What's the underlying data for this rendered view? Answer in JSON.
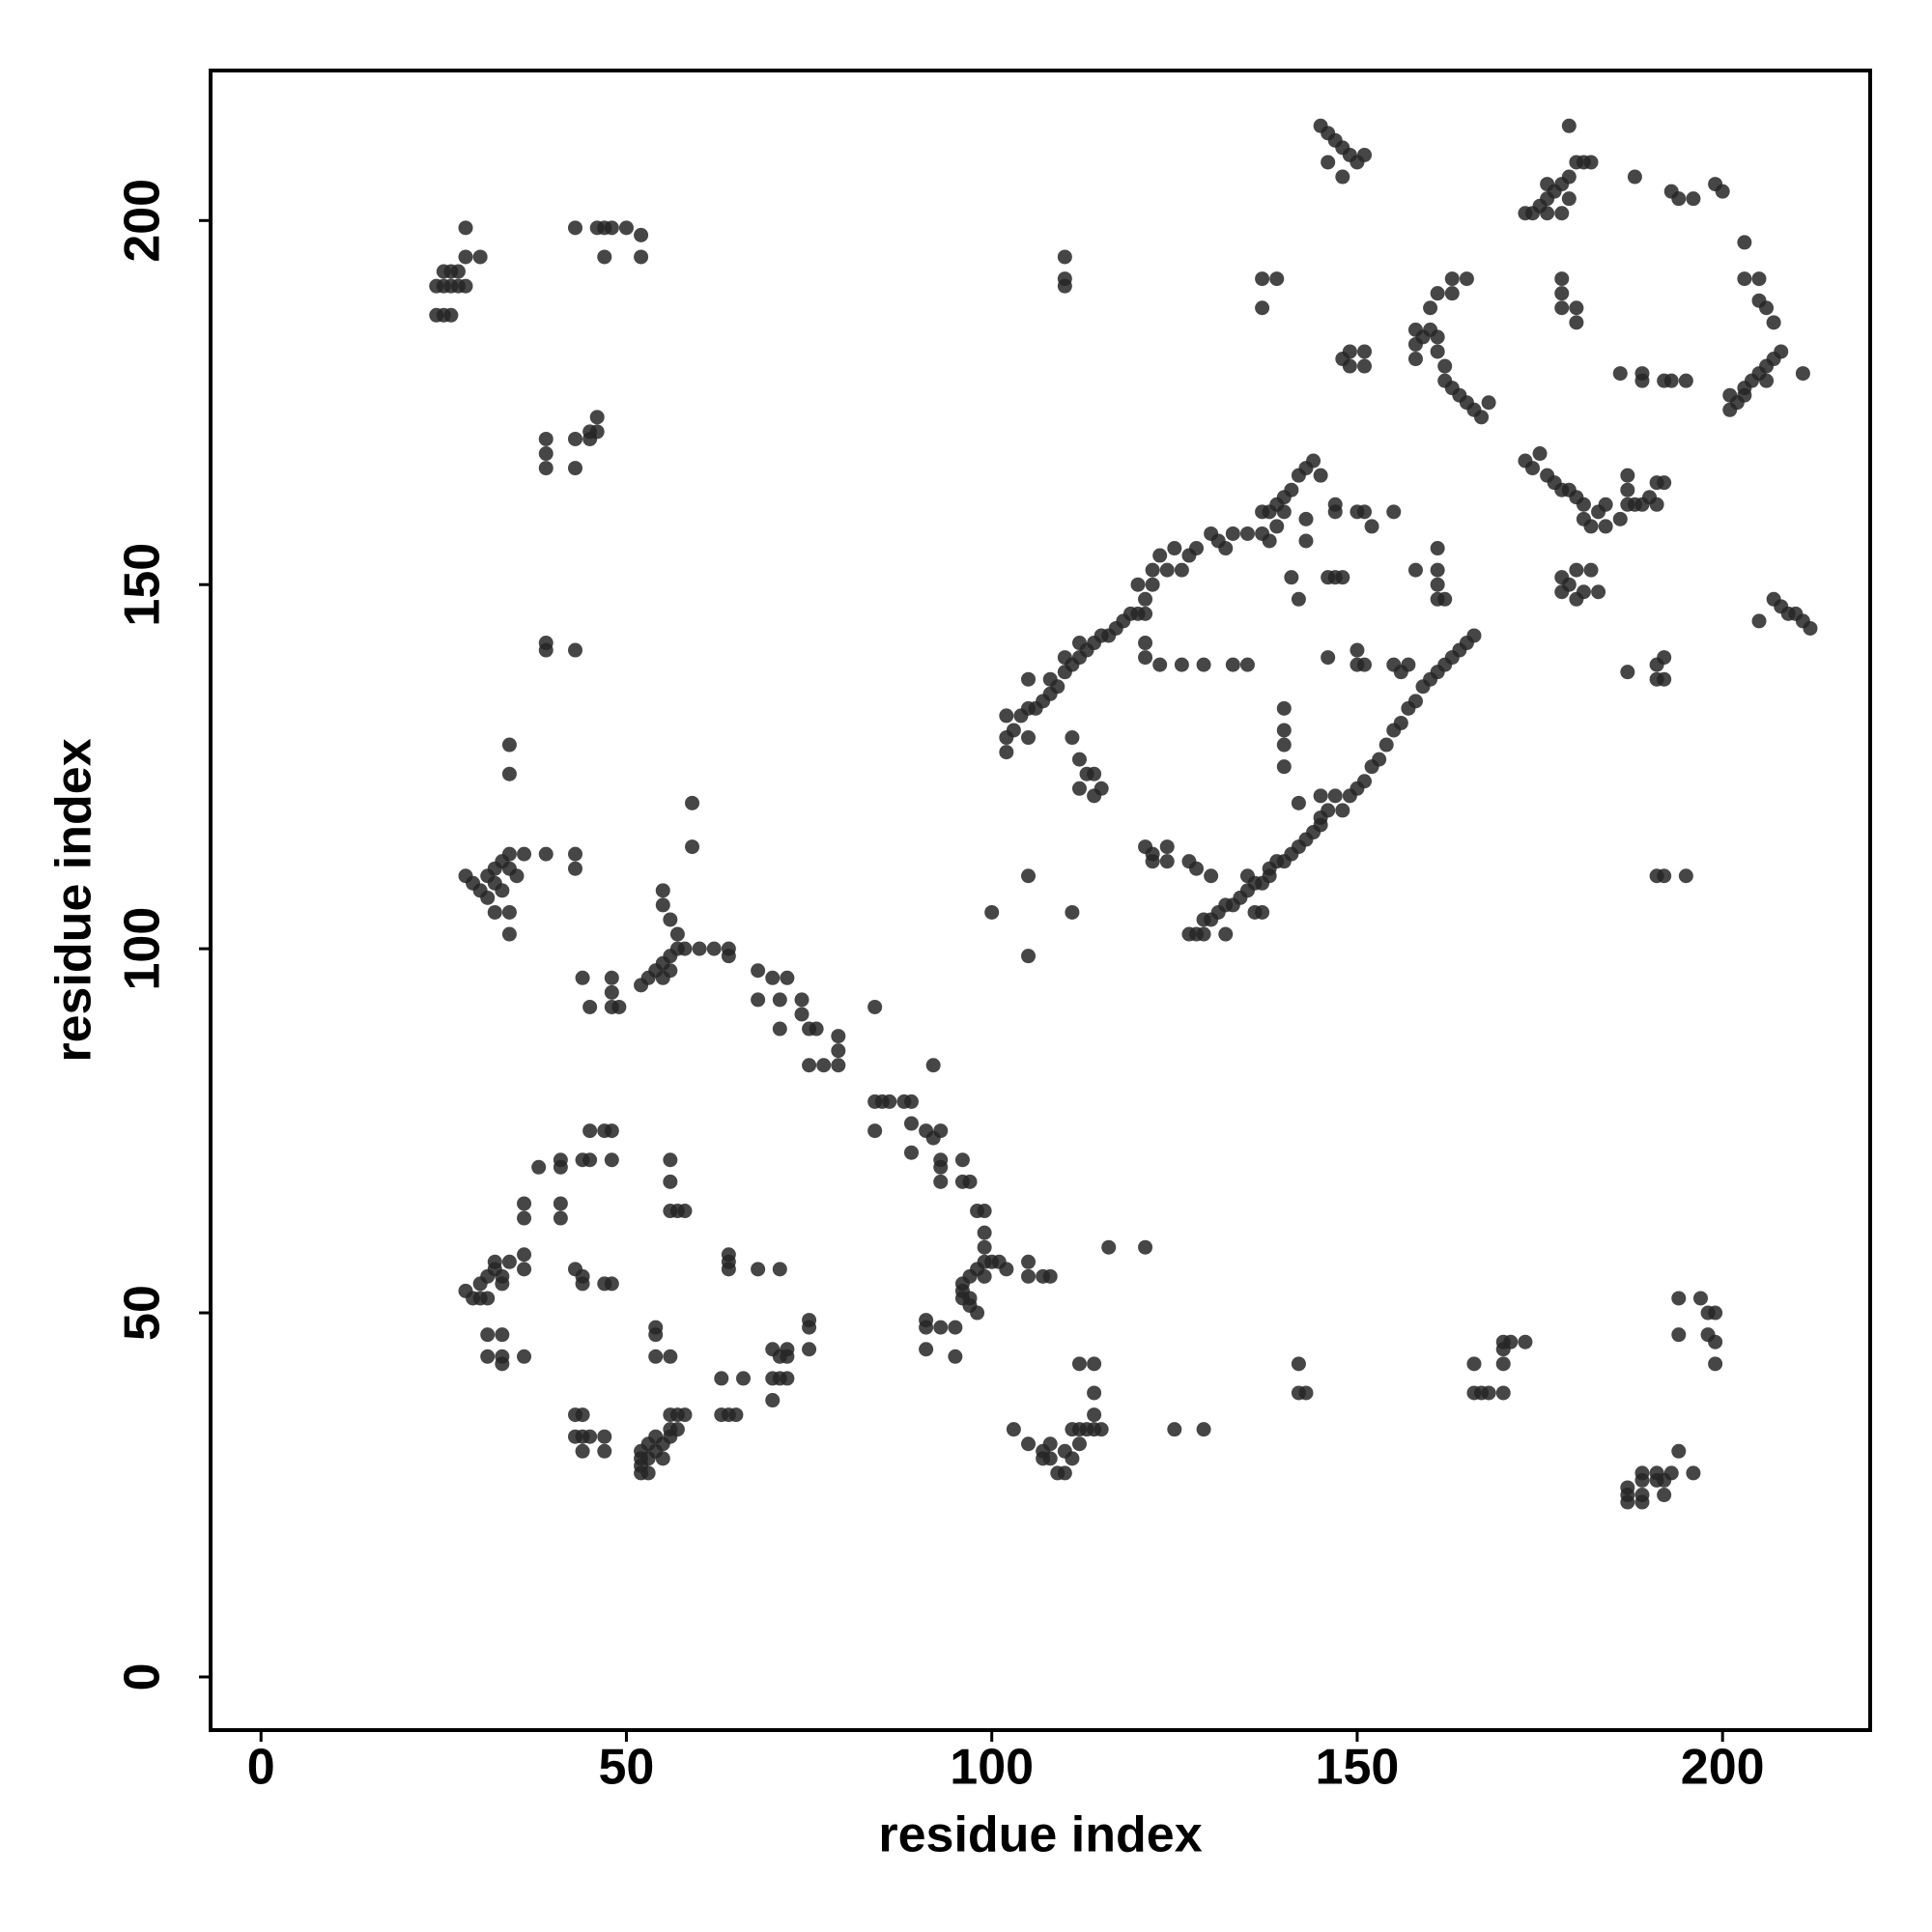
{
  "chart_data": {
    "type": "scatter",
    "xlabel": "residue index",
    "ylabel": "residue index",
    "color": "#262626",
    "xlim": [
      -6.9,
      220.2
    ],
    "ylim": [
      -7.3,
      220.6
    ],
    "xticks": [
      0,
      50,
      100,
      150,
      200
    ],
    "yticks": [
      0,
      50,
      100,
      150,
      200
    ],
    "x": [
      24,
      25,
      26,
      24,
      25,
      26,
      27,
      28,
      25,
      26,
      27,
      28,
      28,
      30,
      43,
      46,
      47,
      48,
      50,
      52,
      47,
      52,
      39,
      39,
      39,
      43,
      45,
      46,
      46,
      45,
      43,
      39,
      39,
      43,
      34,
      34,
      28,
      29,
      30,
      31,
      31,
      32,
      32,
      33,
      32,
      33,
      34,
      34,
      35,
      34,
      34,
      36,
      39,
      43,
      43,
      59,
      59,
      44,
      45,
      48,
      48,
      48,
      49,
      52,
      53,
      54,
      55,
      55,
      56,
      56,
      57,
      57,
      55,
      55,
      56,
      58,
      60,
      62,
      64,
      64,
      68,
      68,
      70,
      71,
      71,
      72,
      74,
      74,
      75,
      75,
      76,
      77,
      79,
      79,
      79,
      84,
      84,
      84,
      85,
      86,
      88,
      89,
      89,
      89,
      91,
      92,
      93,
      93,
      93,
      93,
      96,
      96,
      97,
      98,
      99,
      99,
      99,
      99,
      100,
      101,
      102,
      98,
      99,
      97,
      96,
      96,
      96,
      97,
      97,
      98,
      92,
      28,
      29,
      30,
      31,
      30,
      31,
      32,
      33,
      32,
      33,
      34,
      36,
      36,
      36,
      36,
      38,
      41,
      41,
      41,
      41,
      44,
      45,
      45,
      47,
      48,
      48,
      31,
      31,
      33,
      33,
      33,
      36,
      43,
      44,
      44,
      47,
      48,
      43,
      44,
      43,
      44,
      45,
      44,
      47,
      47,
      52,
      52,
      52,
      52,
      53,
      53,
      53,
      54,
      54,
      55,
      55,
      56,
      56,
      57,
      58,
      56,
      57,
      54,
      54,
      54,
      56,
      56,
      57,
      58,
      56,
      56,
      64,
      64,
      64,
      63,
      63,
      64,
      65,
      66,
      68,
      71,
      70,
      70,
      71,
      72,
      71,
      72,
      72,
      75,
      75,
      75,
      70,
      91,
      91,
      91,
      93,
      95,
      95,
      103,
      105,
      105,
      105,
      107,
      108,
      107,
      107,
      108,
      108,
      109,
      110,
      110,
      111,
      111,
      112,
      112,
      113,
      114,
      114,
      114,
      112,
      114,
      115,
      116,
      121,
      125,
      129,
      142,
      142,
      143,
      166,
      166,
      167,
      168,
      170,
      170,
      170,
      170,
      171,
      173,
      187,
      187,
      187,
      189,
      189,
      189,
      189,
      191,
      191,
      192,
      192,
      193,
      194,
      196,
      194,
      194,
      197,
      198,
      198,
      199,
      199,
      199,
      110,
      110,
      110,
      100,
      105,
      105,
      111,
      137,
      137,
      139,
      102,
      103,
      104,
      105,
      105,
      106,
      107,
      108,
      108,
      109,
      110,
      110,
      111,
      112,
      112,
      113,
      114,
      115,
      116,
      117,
      118,
      119,
      120,
      120,
      121,
      122,
      122,
      123,
      124,
      125,
      126,
      127,
      128,
      130,
      131,
      132,
      133,
      135,
      137,
      138,
      139,
      140,
      141,
      142,
      143,
      144,
      145,
      139,
      140,
      102,
      102,
      105,
      111,
      112,
      112,
      113,
      114,
      114,
      115,
      121,
      121,
      121,
      123,
      126,
      129,
      121,
      122,
      124,
      124,
      127,
      129,
      127,
      128,
      129,
      130,
      131,
      132,
      132,
      133,
      134,
      135,
      136,
      137,
      138,
      138,
      139,
      140,
      141,
      142,
      143,
      144,
      145,
      145,
      146,
      148,
      149,
      150,
      151,
      152,
      153,
      154,
      155,
      156,
      157,
      158,
      159,
      160,
      161,
      162,
      163,
      164,
      165,
      166,
      136,
      145,
      147,
      146,
      147,
      148,
      146,
      150,
      150,
      151,
      150,
      151,
      152,
      155,
      155,
      157,
      156,
      158,
      161,
      161,
      161,
      161,
      162,
      143,
      143,
      141,
      142,
      147,
      147,
      137,
      138,
      140,
      140,
      140,
      140,
      142,
      133,
      135,
      137,
      135,
      130,
      128,
      122,
      146,
      145,
      146,
      147,
      148,
      149,
      151,
      150,
      148,
      148,
      149,
      149,
      151,
      151,
      158,
      158,
      158,
      159,
      160,
      160,
      161,
      161,
      162,
      162,
      163,
      164,
      165,
      166,
      167,
      168,
      163,
      163,
      165,
      161,
      175,
      176,
      176,
      177,
      178,
      179,
      180,
      181,
      182,
      179,
      178,
      176,
      174,
      173,
      178,
      178,
      178,
      180,
      180,
      179,
      173,
      174,
      175,
      176,
      177,
      178,
      179,
      180,
      181,
      181,
      182,
      183,
      184,
      184,
      186,
      187,
      188,
      189,
      187,
      187,
      190,
      178,
      178,
      179,
      180,
      180,
      181,
      182,
      183,
      186,
      188,
      189,
      189,
      192,
      193,
      194,
      196,
      193,
      195,
      191,
      192,
      191,
      191,
      191,
      192,
      192,
      187,
      191,
      192,
      195,
      201,
      201,
      202,
      203,
      203,
      204,
      205,
      206,
      207,
      208,
      206,
      203,
      203,
      205,
      205,
      206,
      207,
      211,
      205,
      207,
      208,
      209,
      210,
      211,
      212,
      199,
      200
    ],
    "values": [
      187,
      187,
      187,
      191,
      191,
      191,
      191,
      191,
      193,
      193,
      193,
      195,
      199,
      195,
      199,
      199,
      199,
      199,
      199,
      198,
      195,
      195,
      170,
      168,
      166,
      170,
      171,
      171,
      173,
      170,
      166,
      142,
      141,
      141,
      128,
      124,
      110,
      109,
      108,
      107,
      110,
      111,
      109,
      108,
      105,
      112,
      113,
      111,
      110,
      105,
      102,
      113,
      113,
      113,
      111,
      120,
      114,
      96,
      92,
      96,
      94,
      92,
      92,
      95,
      96,
      97,
      98,
      96,
      97,
      99,
      100,
      102,
      106,
      108,
      104,
      100,
      100,
      100,
      100,
      99,
      97,
      93,
      96,
      93,
      89,
      96,
      93,
      91,
      89,
      84,
      89,
      84,
      88,
      86,
      84,
      92,
      75,
      79,
      79,
      79,
      79,
      79,
      76,
      72,
      75,
      74,
      75,
      71,
      70,
      68,
      71,
      68,
      68,
      64,
      64,
      61,
      59,
      57,
      57,
      57,
      56,
      56,
      55,
      55,
      54,
      53,
      52,
      52,
      51,
      50,
      84,
      53,
      52,
      52,
      52,
      54,
      55,
      56,
      55,
      57,
      54,
      57,
      58,
      56,
      63,
      65,
      70,
      70,
      71,
      65,
      63,
      71,
      71,
      75,
      75,
      75,
      71,
      47,
      44,
      47,
      44,
      43,
      44,
      56,
      55,
      54,
      54,
      54,
      36,
      36,
      33,
      33,
      33,
      31,
      33,
      31,
      31,
      30,
      29,
      28,
      28,
      30,
      32,
      33,
      31,
      30,
      32,
      33,
      36,
      36,
      36,
      34,
      34,
      48,
      47,
      44,
      44,
      64,
      64,
      64,
      68,
      71,
      58,
      57,
      56,
      41,
      36,
      36,
      36,
      41,
      56,
      56,
      45,
      41,
      41,
      41,
      44,
      45,
      44,
      49,
      48,
      45,
      38,
      49,
      48,
      45,
      48,
      48,
      44,
      34,
      32,
      57,
      55,
      55,
      55,
      31,
      30,
      30,
      32,
      28,
      28,
      31,
      30,
      34,
      32,
      34,
      34,
      34,
      36,
      39,
      43,
      43,
      34,
      59,
      59,
      34,
      34,
      43,
      39,
      39,
      43,
      39,
      39,
      39,
      39,
      43,
      45,
      46,
      46,
      46,
      24,
      25,
      26,
      24,
      25,
      27,
      28,
      27,
      28,
      25,
      27,
      28,
      31,
      28,
      52,
      47,
      52,
      50,
      47,
      50,
      46,
      43,
      195,
      192,
      191,
      105,
      110,
      99,
      105,
      192,
      188,
      192,
      132,
      130,
      132,
      133,
      137,
      133,
      134,
      135,
      137,
      136,
      138,
      140,
      139,
      140,
      142,
      141,
      142,
      143,
      143,
      144,
      145,
      146,
      150,
      146,
      148,
      150,
      152,
      154,
      152,
      155,
      152,
      154,
      155,
      157,
      156,
      155,
      157,
      157,
      160,
      160,
      161,
      162,
      163,
      165,
      166,
      167,
      165,
      158,
      160,
      127,
      129,
      129,
      129,
      126,
      122,
      124,
      124,
      121,
      122,
      146,
      142,
      140,
      139,
      139,
      139,
      114,
      113,
      114,
      112,
      112,
      104,
      102,
      102,
      102,
      104,
      105,
      106,
      102,
      106,
      107,
      108,
      109,
      109,
      110,
      111,
      112,
      112,
      113,
      114,
      115,
      116,
      117,
      118,
      119,
      119,
      121,
      122,
      123,
      125,
      126,
      128,
      130,
      131,
      133,
      134,
      136,
      137,
      138,
      139,
      140,
      141,
      142,
      143,
      105,
      121,
      121,
      140,
      151,
      151,
      151,
      141,
      139,
      139,
      160,
      160,
      158,
      160,
      139,
      139,
      138,
      152,
      155,
      152,
      150,
      148,
      148,
      159,
      156,
      151,
      148,
      161,
      160,
      157,
      156,
      133,
      130,
      128,
      125,
      120,
      139,
      139,
      105,
      110,
      110,
      111,
      112,
      208,
      213,
      212,
      211,
      210,
      209,
      209,
      208,
      206,
      181,
      182,
      180,
      182,
      180,
      181,
      183,
      185,
      184,
      185,
      188,
      184,
      182,
      180,
      178,
      177,
      176,
      175,
      174,
      173,
      175,
      190,
      192,
      192,
      190,
      202,
      203,
      205,
      204,
      205,
      206,
      208,
      208,
      208,
      203,
      201,
      201,
      201,
      201,
      192,
      190,
      188,
      188,
      186,
      213,
      167,
      166,
      168,
      165,
      164,
      163,
      163,
      162,
      161,
      159,
      158,
      160,
      158,
      161,
      159,
      161,
      161,
      161,
      163,
      165,
      162,
      151,
      149,
      150,
      152,
      148,
      149,
      152,
      149,
      179,
      206,
      179,
      178,
      178,
      204,
      203,
      203,
      178,
      178,
      164,
      164,
      161,
      139,
      137,
      137,
      140,
      138,
      110,
      110,
      110,
      174,
      176,
      175,
      176,
      177,
      178,
      179,
      180,
      181,
      182,
      178,
      192,
      197,
      192,
      189,
      188,
      186,
      179,
      145,
      148,
      147,
      146,
      146,
      145,
      144,
      205,
      204
    ]
  }
}
